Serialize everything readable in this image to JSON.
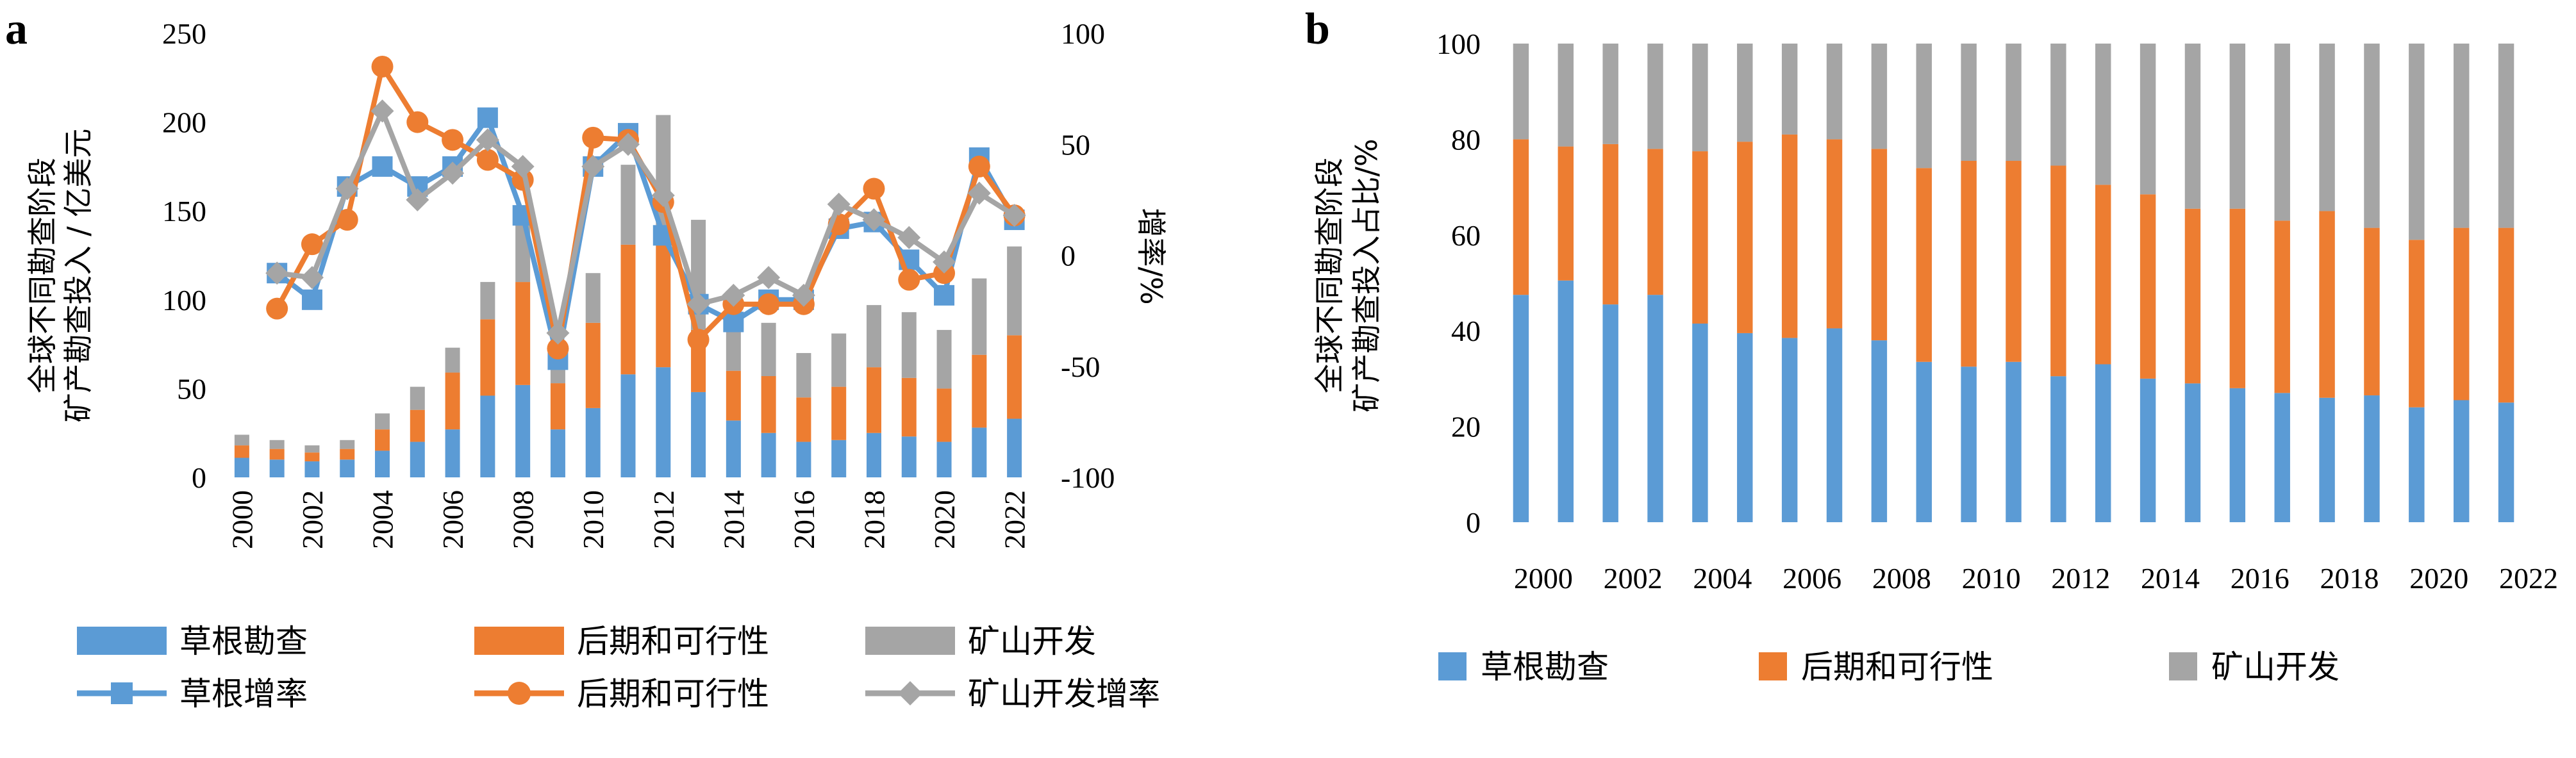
{
  "panel_a": {
    "letter": "a",
    "ylabel_left_line1": "全球不同勘查阶段",
    "ylabel_left_line2": "矿产勘查投入 / 亿美元",
    "ylabel_right": "增率/%",
    "left_ticks": [
      "0",
      "50",
      "100",
      "150",
      "200",
      "250"
    ],
    "right_ticks": [
      "-100",
      "-50",
      "0",
      "50",
      "100"
    ],
    "x_ticks": [
      "2000",
      "2002",
      "2004",
      "2006",
      "2008",
      "2010",
      "2012",
      "2014",
      "2016",
      "2018",
      "2020",
      "2022"
    ],
    "legend": [
      {
        "label": "草根勘查",
        "kind": "bar",
        "color": "#5b9bd5"
      },
      {
        "label": "后期和可行性",
        "kind": "bar",
        "color": "#ed7d31"
      },
      {
        "label": "矿山开发",
        "kind": "bar",
        "color": "#a5a5a5"
      },
      {
        "label": "草根增率",
        "kind": "line-square",
        "color": "#5b9bd5"
      },
      {
        "label": "后期和可行性",
        "kind": "line-circle",
        "color": "#ed7d31"
      },
      {
        "label": "矿山开发增率",
        "kind": "line-diamond",
        "color": "#a5a5a5"
      }
    ]
  },
  "panel_b": {
    "letter": "b",
    "ylabel_line1": "全球不同勘查阶段",
    "ylabel_line2": "矿产勘查投入占比/%",
    "y_ticks": [
      "0",
      "20",
      "40",
      "60",
      "80",
      "100"
    ],
    "x_ticks": [
      "2000",
      "2002",
      "2004",
      "2006",
      "2008",
      "2010",
      "2012",
      "2014",
      "2016",
      "2018",
      "2020",
      "2022"
    ],
    "legend": [
      {
        "label": "草根勘查",
        "color": "#5b9bd5"
      },
      {
        "label": "后期和可行性",
        "color": "#ed7d31"
      },
      {
        "label": "矿山开发",
        "color": "#a5a5a5"
      }
    ]
  },
  "chart_data": [
    {
      "type": "bar",
      "stacked": true,
      "panel": "a",
      "title": "",
      "ylabel": "全球不同勘查阶段矿产勘查投入 / 亿美元",
      "y2label": "增率/%",
      "ylim": [
        0,
        250
      ],
      "y2lim": [
        -100,
        100
      ],
      "categories": [
        "2000",
        "2001",
        "2002",
        "2003",
        "2004",
        "2005",
        "2006",
        "2007",
        "2008",
        "2009",
        "2010",
        "2011",
        "2012",
        "2013",
        "2014",
        "2015",
        "2016",
        "2017",
        "2018",
        "2019",
        "2020",
        "2021",
        "2022"
      ],
      "series": [
        {
          "name": "草根勘查",
          "axis": "left",
          "type": "bar",
          "color": "#5b9bd5",
          "values": [
            11,
            10,
            9,
            10,
            15,
            20,
            27,
            46,
            52,
            27,
            39,
            58,
            62,
            48,
            32,
            25,
            20,
            21,
            25,
            23,
            20,
            28,
            33
          ]
        },
        {
          "name": "后期和可行性",
          "axis": "left",
          "type": "bar",
          "color": "#ed7d31",
          "values": [
            7,
            6,
            5,
            6,
            12,
            18,
            32,
            43,
            58,
            26,
            48,
            73,
            72,
            35,
            28,
            32,
            25,
            30,
            37,
            33,
            30,
            41,
            47
          ]
        },
        {
          "name": "矿山开发",
          "axis": "left",
          "type": "bar",
          "color": "#a5a5a5",
          "values": [
            6,
            5,
            4,
            5,
            9,
            13,
            14,
            21,
            35,
            12,
            28,
            45,
            70,
            62,
            45,
            30,
            25,
            30,
            35,
            37,
            33,
            43,
            50
          ]
        },
        {
          "name": "草根增率",
          "axis": "right",
          "type": "line",
          "marker": "square",
          "color": "#5b9bd5",
          "values": [
            null,
            -8,
            -20,
            31,
            40,
            31,
            40,
            62,
            18,
            -47,
            40,
            55,
            9,
            -22,
            -30,
            -20,
            -20,
            12,
            15,
            -2,
            -18,
            44,
            16
          ]
        },
        {
          "name": "后期和可行性",
          "axis": "right",
          "type": "line",
          "marker": "circle",
          "color": "#ed7d31",
          "values": [
            null,
            -24,
            5,
            16,
            85,
            60,
            52,
            43,
            34,
            -42,
            53,
            52,
            24,
            -38,
            -22,
            -22,
            -22,
            14,
            30,
            -11,
            -8,
            40,
            18
          ]
        },
        {
          "name": "矿山开发增率",
          "axis": "right",
          "type": "line",
          "marker": "diamond",
          "color": "#a5a5a5",
          "values": [
            null,
            -8,
            -10,
            30,
            65,
            25,
            37,
            52,
            40,
            -35,
            40,
            50,
            27,
            -22,
            -18,
            -10,
            -18,
            23,
            16,
            8,
            -3,
            28,
            18
          ]
        }
      ]
    },
    {
      "type": "bar",
      "stacked": true,
      "panel": "b",
      "title": "",
      "ylabel": "全球不同勘查阶段矿产勘查投入占比/%",
      "ylim": [
        0,
        100
      ],
      "categories": [
        "2000",
        "2001",
        "2002",
        "2003",
        "2004",
        "2005",
        "2006",
        "2007",
        "2008",
        "2009",
        "2010",
        "2011",
        "2012",
        "2013",
        "2014",
        "2015",
        "2016",
        "2017",
        "2018",
        "2019",
        "2020",
        "2021",
        "2022"
      ],
      "series": [
        {
          "name": "草根勘查",
          "color": "#5b9bd5",
          "values": [
            47.5,
            50.5,
            45.5,
            47.5,
            41.5,
            39.5,
            38.5,
            40.5,
            38,
            33.5,
            32.5,
            33.5,
            30.5,
            33,
            30,
            29,
            28,
            27,
            26,
            26.5,
            24,
            25.5,
            25
          ]
        },
        {
          "name": "后期和可行性",
          "color": "#ed7d31",
          "values": [
            32.5,
            28,
            33.5,
            30.5,
            36,
            40,
            42.5,
            39.5,
            40,
            40.5,
            43,
            42,
            44,
            37.5,
            38.5,
            36.5,
            37.5,
            36,
            39,
            35,
            35,
            36,
            36.5
          ]
        },
        {
          "name": "矿山开发",
          "color": "#a5a5a5",
          "values": [
            20,
            21.5,
            21,
            22,
            22.5,
            20.5,
            19,
            20,
            22,
            26,
            24.5,
            24.5,
            25.5,
            29.5,
            31.5,
            34.5,
            34.5,
            37,
            35,
            38.5,
            41,
            38.5,
            38.5
          ]
        }
      ]
    }
  ]
}
